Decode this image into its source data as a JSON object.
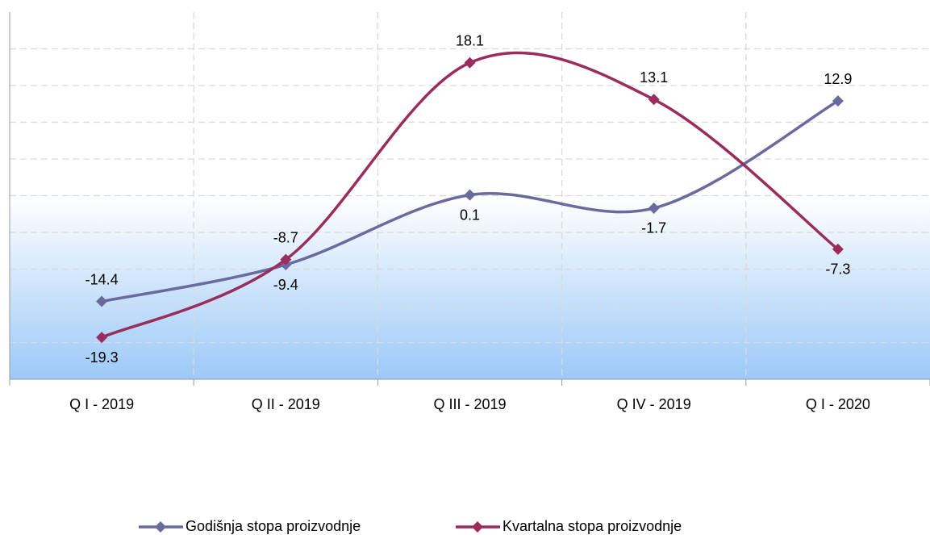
{
  "chart_data": {
    "type": "line",
    "categories": [
      "Q I - 2019",
      "Q II - 2019",
      "Q III - 2019",
      "Q IV - 2019",
      "Q I - 2020"
    ],
    "series": [
      {
        "name": "Godišnja stopa proizvodnje",
        "color": "#6a6a9e",
        "values": [
          -14.4,
          -9.4,
          0.1,
          -1.7,
          12.9
        ]
      },
      {
        "name": "Kvartalna stopa proizvodnje",
        "color": "#9a2d5d",
        "values": [
          -19.3,
          -8.7,
          18.1,
          13.1,
          -7.3
        ]
      }
    ],
    "ylim": [
      -25,
      25
    ],
    "yticks": [
      -25,
      -20,
      -15,
      -10,
      -5,
      0,
      5,
      10,
      15,
      20,
      25
    ],
    "grid": true
  }
}
